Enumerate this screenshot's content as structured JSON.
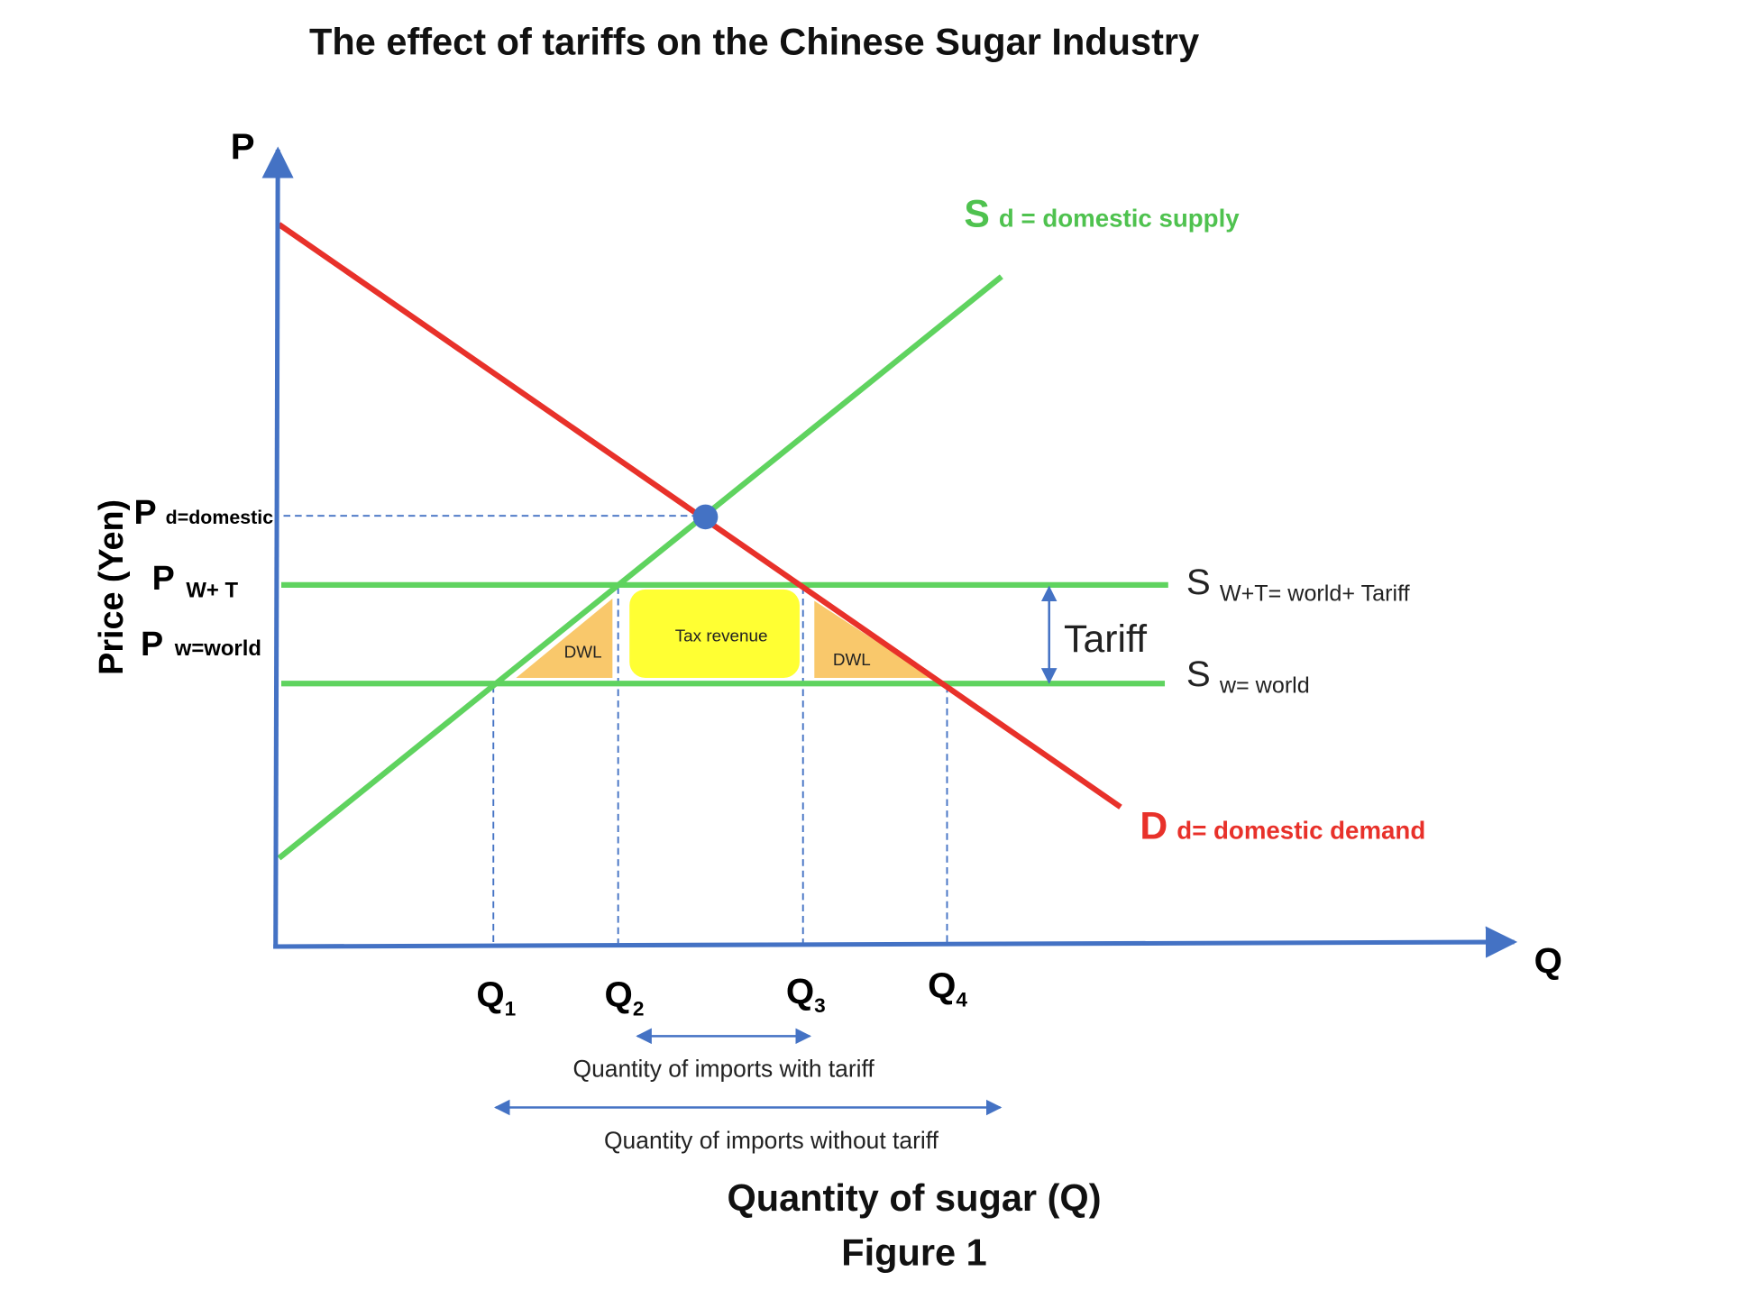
{
  "title": "The effect of tariffs on the Chinese Sugar Industry",
  "y_axis": {
    "symbol": "P",
    "label": "Price (Yen)"
  },
  "x_axis": {
    "symbol": "Q",
    "label": "Quantity of sugar (Q)"
  },
  "caption": "Figure 1",
  "price_labels": [
    {
      "main": "P",
      "sub": "d=domestic"
    },
    {
      "main": "P",
      "sub": "W+ T"
    },
    {
      "main": "P",
      "sub": "w=world"
    }
  ],
  "curves": {
    "supply": {
      "main": "S",
      "sub": "d = domestic supply"
    },
    "demand": {
      "main": "D",
      "sub": "d= domestic demand"
    },
    "world_tariff": {
      "main": "S",
      "sub": "W+T= world+ Tariff"
    },
    "world": {
      "main": "S",
      "sub": "w= world"
    }
  },
  "tariff_label": "Tariff",
  "regions": [
    "DWL",
    "Tax revenue",
    "DWL"
  ],
  "quantities": [
    {
      "main": "Q",
      "sub": "1"
    },
    {
      "main": "Q",
      "sub": "2"
    },
    {
      "main": "Q",
      "sub": "3"
    },
    {
      "main": "Q",
      "sub": "4"
    }
  ],
  "imports": {
    "with_tariff": "Quantity of imports with tariff",
    "without_tariff": "Quantity of imports without tariff"
  }
}
